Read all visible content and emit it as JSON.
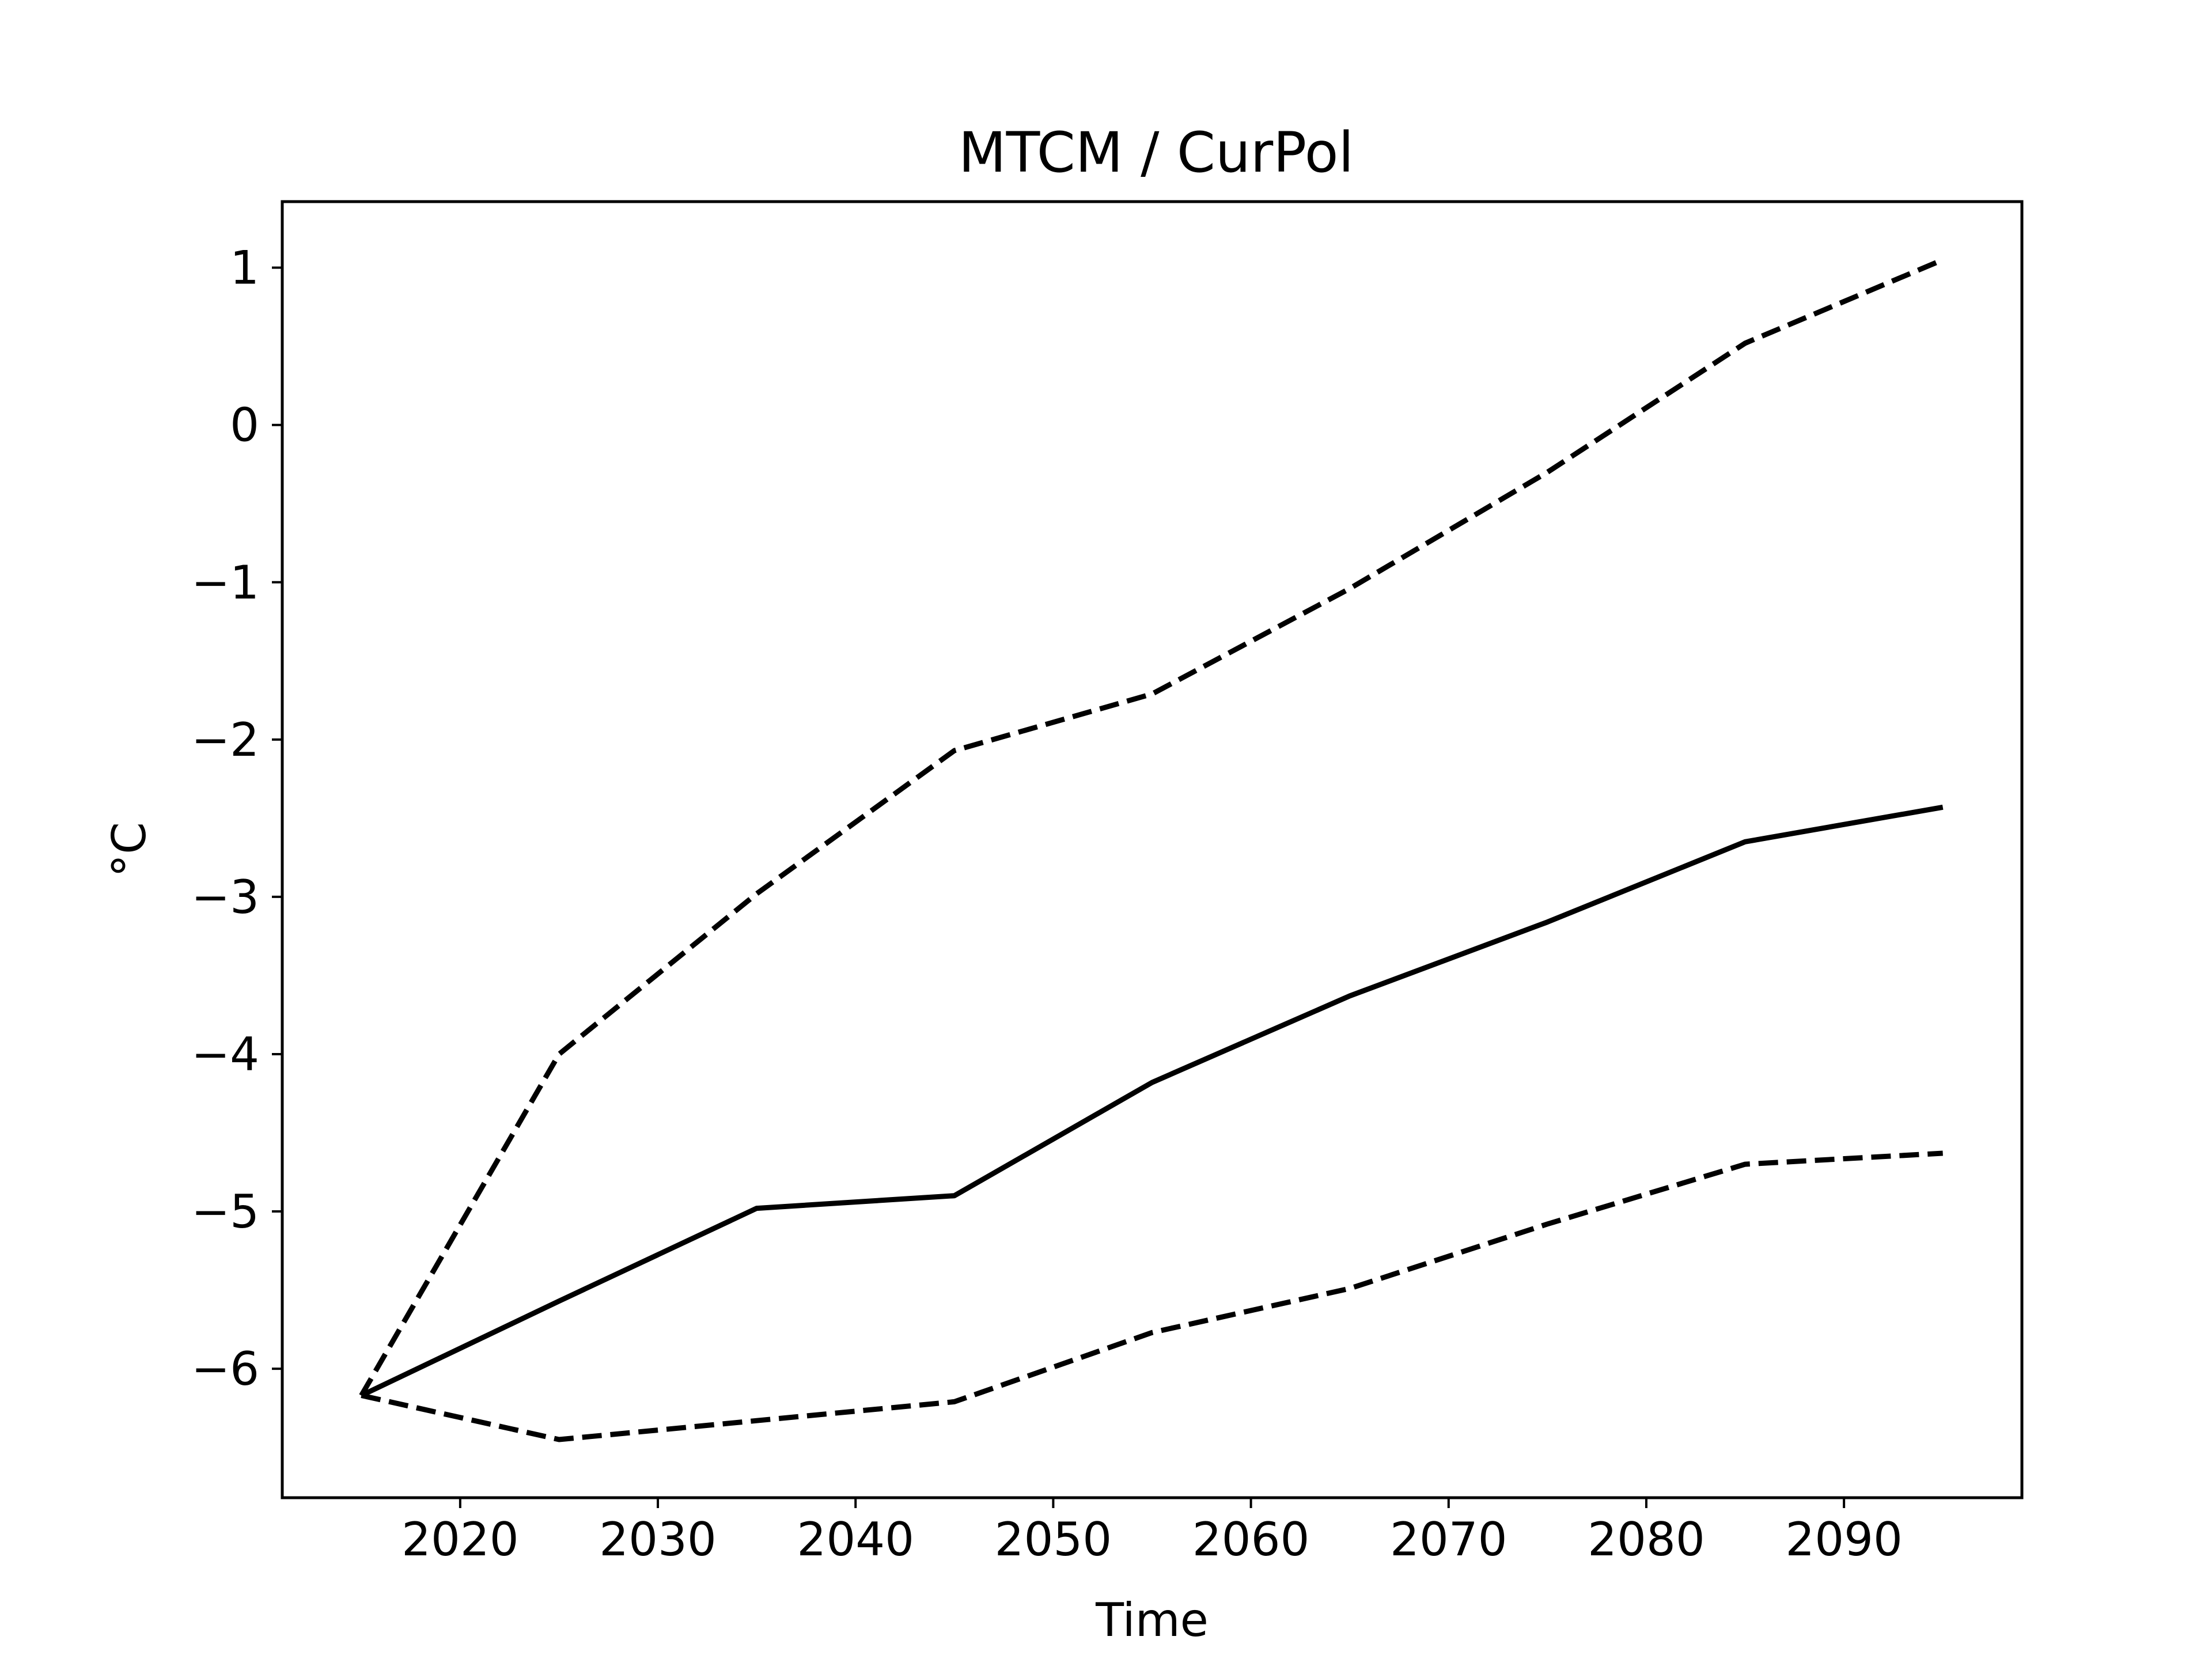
{
  "chart_data": {
    "type": "line",
    "title": "MTCM / CurPol",
    "xlabel": "Time",
    "ylabel": "°C",
    "xlim": [
      2011,
      2099
    ],
    "ylim": [
      -6.82,
      1.42
    ],
    "xticks": [
      2020,
      2030,
      2040,
      2050,
      2060,
      2070,
      2080,
      2090
    ],
    "xtick_labels": [
      "2020",
      "2030",
      "2040",
      "2050",
      "2060",
      "2070",
      "2080",
      "2090"
    ],
    "yticks": [
      1,
      0,
      -1,
      -2,
      -3,
      -4,
      -5,
      -6
    ],
    "ytick_labels": [
      "1",
      "0",
      "−1",
      "−2",
      "−3",
      "−4",
      "−5",
      "−6"
    ],
    "grid": false,
    "legend": "none",
    "series": [
      {
        "style": "solid",
        "color": "#000000",
        "x": [
          2015,
          2025,
          2035,
          2045,
          2055,
          2065,
          2075,
          2085,
          2095
        ],
        "y": [
          -6.17,
          -5.57,
          -4.98,
          -4.9,
          -4.18,
          -3.63,
          -3.16,
          -2.65,
          -2.43
        ]
      },
      {
        "style": "dashed",
        "color": "#000000",
        "x": [
          2015,
          2025,
          2035,
          2045,
          2055,
          2065,
          2075,
          2085,
          2095
        ],
        "y": [
          -6.17,
          -4.0,
          -2.98,
          -2.07,
          -1.71,
          -1.04,
          -0.3,
          0.52,
          1.05
        ]
      },
      {
        "style": "dashed",
        "color": "#000000",
        "x": [
          2015,
          2025,
          2035,
          2045,
          2055,
          2065,
          2075,
          2085,
          2095
        ],
        "y": [
          -6.17,
          -6.45,
          -6.33,
          -6.21,
          -5.77,
          -5.49,
          -5.08,
          -4.7,
          -4.63
        ]
      }
    ]
  }
}
